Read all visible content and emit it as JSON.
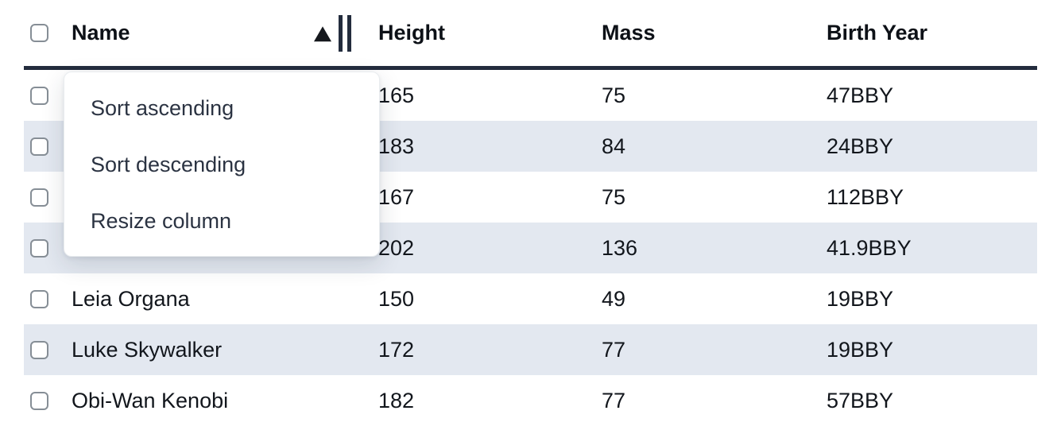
{
  "table": {
    "columns": [
      {
        "key": "name",
        "label": "Name"
      },
      {
        "key": "height",
        "label": "Height"
      },
      {
        "key": "mass",
        "label": "Mass"
      },
      {
        "key": "birth_year",
        "label": "Birth Year"
      }
    ],
    "sort": {
      "column": "Name",
      "direction": "ascending"
    },
    "rows": [
      {
        "name": "",
        "height": "165",
        "mass": "75",
        "birth_year": "47BBY"
      },
      {
        "name": "",
        "height": "183",
        "mass": "84",
        "birth_year": "24BBY"
      },
      {
        "name": "",
        "height": "167",
        "mass": "75",
        "birth_year": "112BBY"
      },
      {
        "name": "",
        "height": "202",
        "mass": "136",
        "birth_year": "41.9BBY"
      },
      {
        "name": "Leia Organa",
        "height": "150",
        "mass": "49",
        "birth_year": "19BBY"
      },
      {
        "name": "Luke Skywalker",
        "height": "172",
        "mass": "77",
        "birth_year": "19BBY"
      },
      {
        "name": "Obi-Wan Kenobi",
        "height": "182",
        "mass": "77",
        "birth_year": "57BBY"
      }
    ]
  },
  "column_menu": {
    "items": [
      {
        "label": "Sort ascending"
      },
      {
        "label": "Sort descending"
      },
      {
        "label": "Resize column"
      }
    ]
  },
  "colors": {
    "stripe": "#e3e8f0",
    "header_border": "#232c3d",
    "menu_text": "#2b3342",
    "cell_text": "#12161c"
  }
}
